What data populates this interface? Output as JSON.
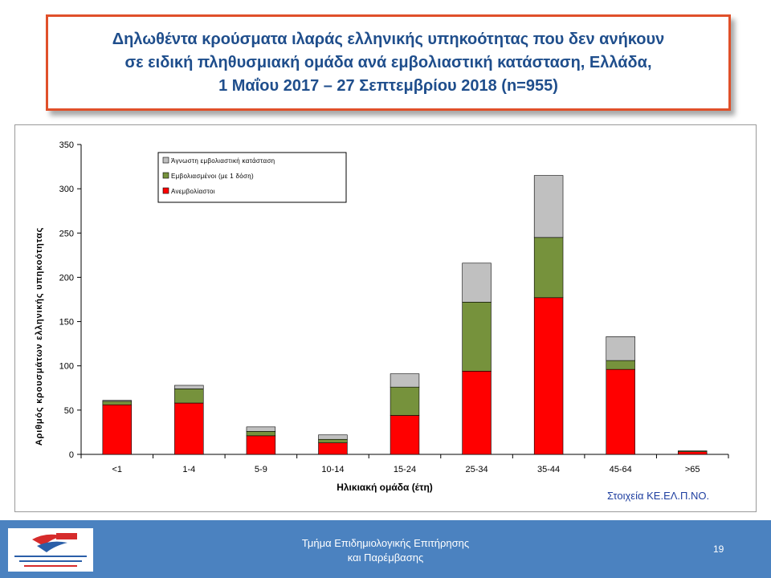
{
  "title": {
    "lines": [
      "Δηλωθέντα κρούσματα ιλαράς ελληνικής υπηκοότητας που δεν ανήκουν",
      "σε ειδική πληθυσμιακή ομάδα ανά εμβολιαστική κατάσταση, Ελλάδα,",
      "1 Μαΐου 2017   –   27 Σεπτεμβρίου 2018 (n=955)"
    ]
  },
  "source_note": "Στοιχεία ΚΕ.ΕΛ.Π.ΝΟ.",
  "footer": {
    "line1": "Τμήμα Επιδημιολογικής Επιτήρησης",
    "line2": "και Παρέμβασης",
    "page_number": "19"
  },
  "logo": {
    "icon": "keelpno-logo"
  },
  "colors": {
    "title_text": "#1f4e8c",
    "title_border": "#e0502a",
    "unvaccinated": "#ff0000",
    "vaccinated": "#76923c",
    "unknown": "#c0c0c0",
    "footer": "#4b82c0"
  },
  "chart_data": {
    "type": "bar",
    "stacked": true,
    "categories": [
      "<1",
      "1-4",
      "5-9",
      "10-14",
      "15-24",
      "25-34",
      "35-44",
      "45-64",
      ">65"
    ],
    "series": [
      {
        "name": "Ανεμβολίαστοι",
        "color": "#ff0000",
        "values": [
          56,
          58,
          21,
          13,
          44,
          94,
          177,
          96,
          3
        ]
      },
      {
        "name": "Εμβολιασμένοι  (με 1 δόση)",
        "color": "#76923c",
        "values": [
          4,
          16,
          5,
          4,
          32,
          78,
          68,
          10,
          1
        ]
      },
      {
        "name": "Άγνωστη εμβολιαστική κατάσταση",
        "color": "#c0c0c0",
        "values": [
          1,
          4,
          5,
          5,
          15,
          44,
          70,
          27,
          0
        ]
      }
    ],
    "xlabel": "Ηλικιακή ομάδα (έτη)",
    "ylabel": "Αριθμός κρουσμάτων ελληνικής υπηκοότητας",
    "ylim": [
      0,
      350
    ],
    "yticks": [
      0,
      50,
      100,
      150,
      200,
      250,
      300,
      350
    ],
    "grid": false,
    "legend_position": "top-left",
    "legend_order": [
      2,
      1,
      0
    ]
  }
}
